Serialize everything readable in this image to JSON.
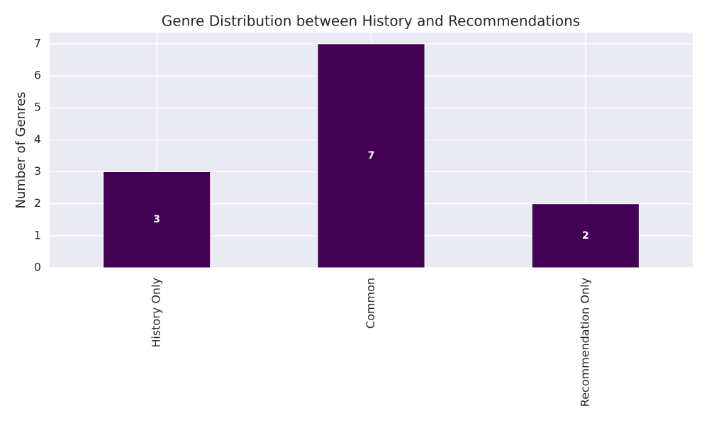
{
  "chart_data": {
    "type": "bar",
    "title": "Genre Distribution between History and Recommendations",
    "y_label": "Number of Genres",
    "categories": [
      "History Only",
      "Common",
      "Recommendation Only"
    ],
    "values": [
      3,
      7,
      2
    ],
    "color": "#440154",
    "ylim": [
      0,
      7.35
    ],
    "yticks": [
      0,
      1,
      2,
      3,
      4,
      5,
      6,
      7
    ],
    "grid": true
  }
}
